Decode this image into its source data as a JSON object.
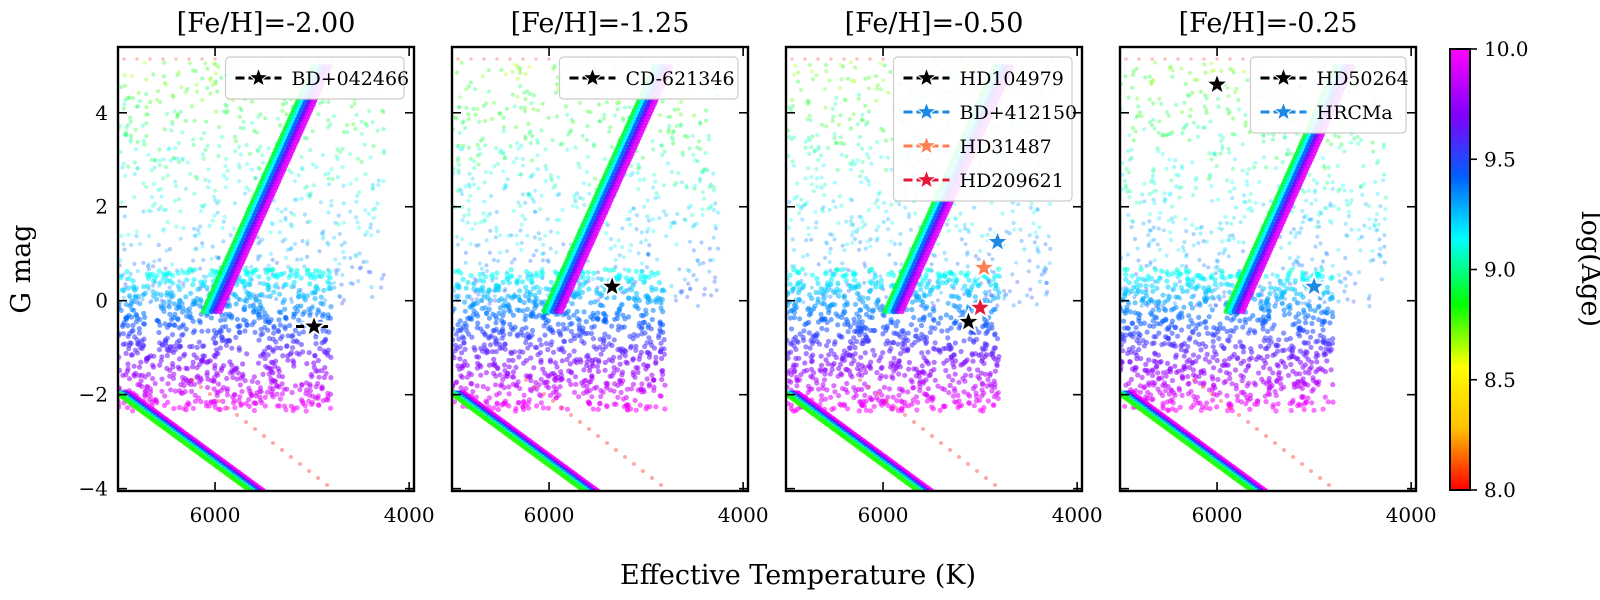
{
  "chart_data": {
    "type": "scatter",
    "xlabel": "Effective Temperature (K)",
    "ylabel": "G mag",
    "xlim": [
      7000,
      3950
    ],
    "ylim": [
      5.4,
      -4.05
    ],
    "x_ticks": [
      6000,
      4000
    ],
    "y_ticks": [
      -4,
      -2,
      0,
      2,
      4
    ],
    "colorbar": {
      "label": "log(Age)",
      "range": [
        8.0,
        10.0
      ],
      "ticks": [
        "8.0",
        "8.5",
        "9.0",
        "9.5",
        "10.0"
      ],
      "colors": [
        "#ff0000",
        "#ffc000",
        "#ffff00",
        "#00ff00",
        "#00ffff",
        "#0060ff",
        "#8000ff",
        "#ff00ff"
      ]
    },
    "panels": [
      {
        "title": "[Fe/H]=-2.00",
        "stars": [
          {
            "name": "BD+042466",
            "teff": 4980,
            "gmag": -0.55,
            "color": "#000000"
          }
        ]
      },
      {
        "title": "[Fe/H]=-1.25",
        "stars": [
          {
            "name": "CD-621346",
            "teff": 5350,
            "gmag": 0.3,
            "color": "#000000"
          }
        ]
      },
      {
        "title": "[Fe/H]=-0.50",
        "stars": [
          {
            "name": "HD104979",
            "teff": 5120,
            "gmag": -0.45,
            "color": "#000000"
          },
          {
            "name": "BD+412150",
            "teff": 4820,
            "gmag": 1.25,
            "color": "#1e88e5"
          },
          {
            "name": "HD31487",
            "teff": 4960,
            "gmag": 0.7,
            "color": "#ff7f50"
          },
          {
            "name": "HD209621",
            "teff": 5000,
            "gmag": -0.15,
            "color": "#e8173c"
          }
        ]
      },
      {
        "title": "[Fe/H]=-0.25",
        "stars": [
          {
            "name": "HD50264",
            "teff": 6000,
            "gmag": 4.6,
            "color": "#000000"
          },
          {
            "name": "HRCMa",
            "teff": 5000,
            "gmag": 0.3,
            "color": "#1e88e5"
          }
        ]
      }
    ]
  }
}
